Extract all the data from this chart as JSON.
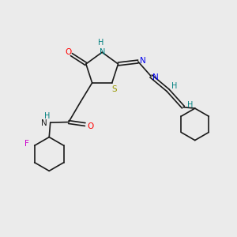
{
  "bg_color": "#ebebeb",
  "bond_color": "#1a1a1a",
  "figsize": [
    3.0,
    3.0
  ],
  "dpi": 100,
  "xlim": [
    0.0,
    10.0
  ],
  "ylim": [
    0.5,
    10.5
  ],
  "lw": 1.2,
  "colors": {
    "O": "#ff0000",
    "N": "#0000ee",
    "NH": "#008080",
    "S": "#999900",
    "F": "#cc00cc",
    "C": "#1a1a1a"
  }
}
